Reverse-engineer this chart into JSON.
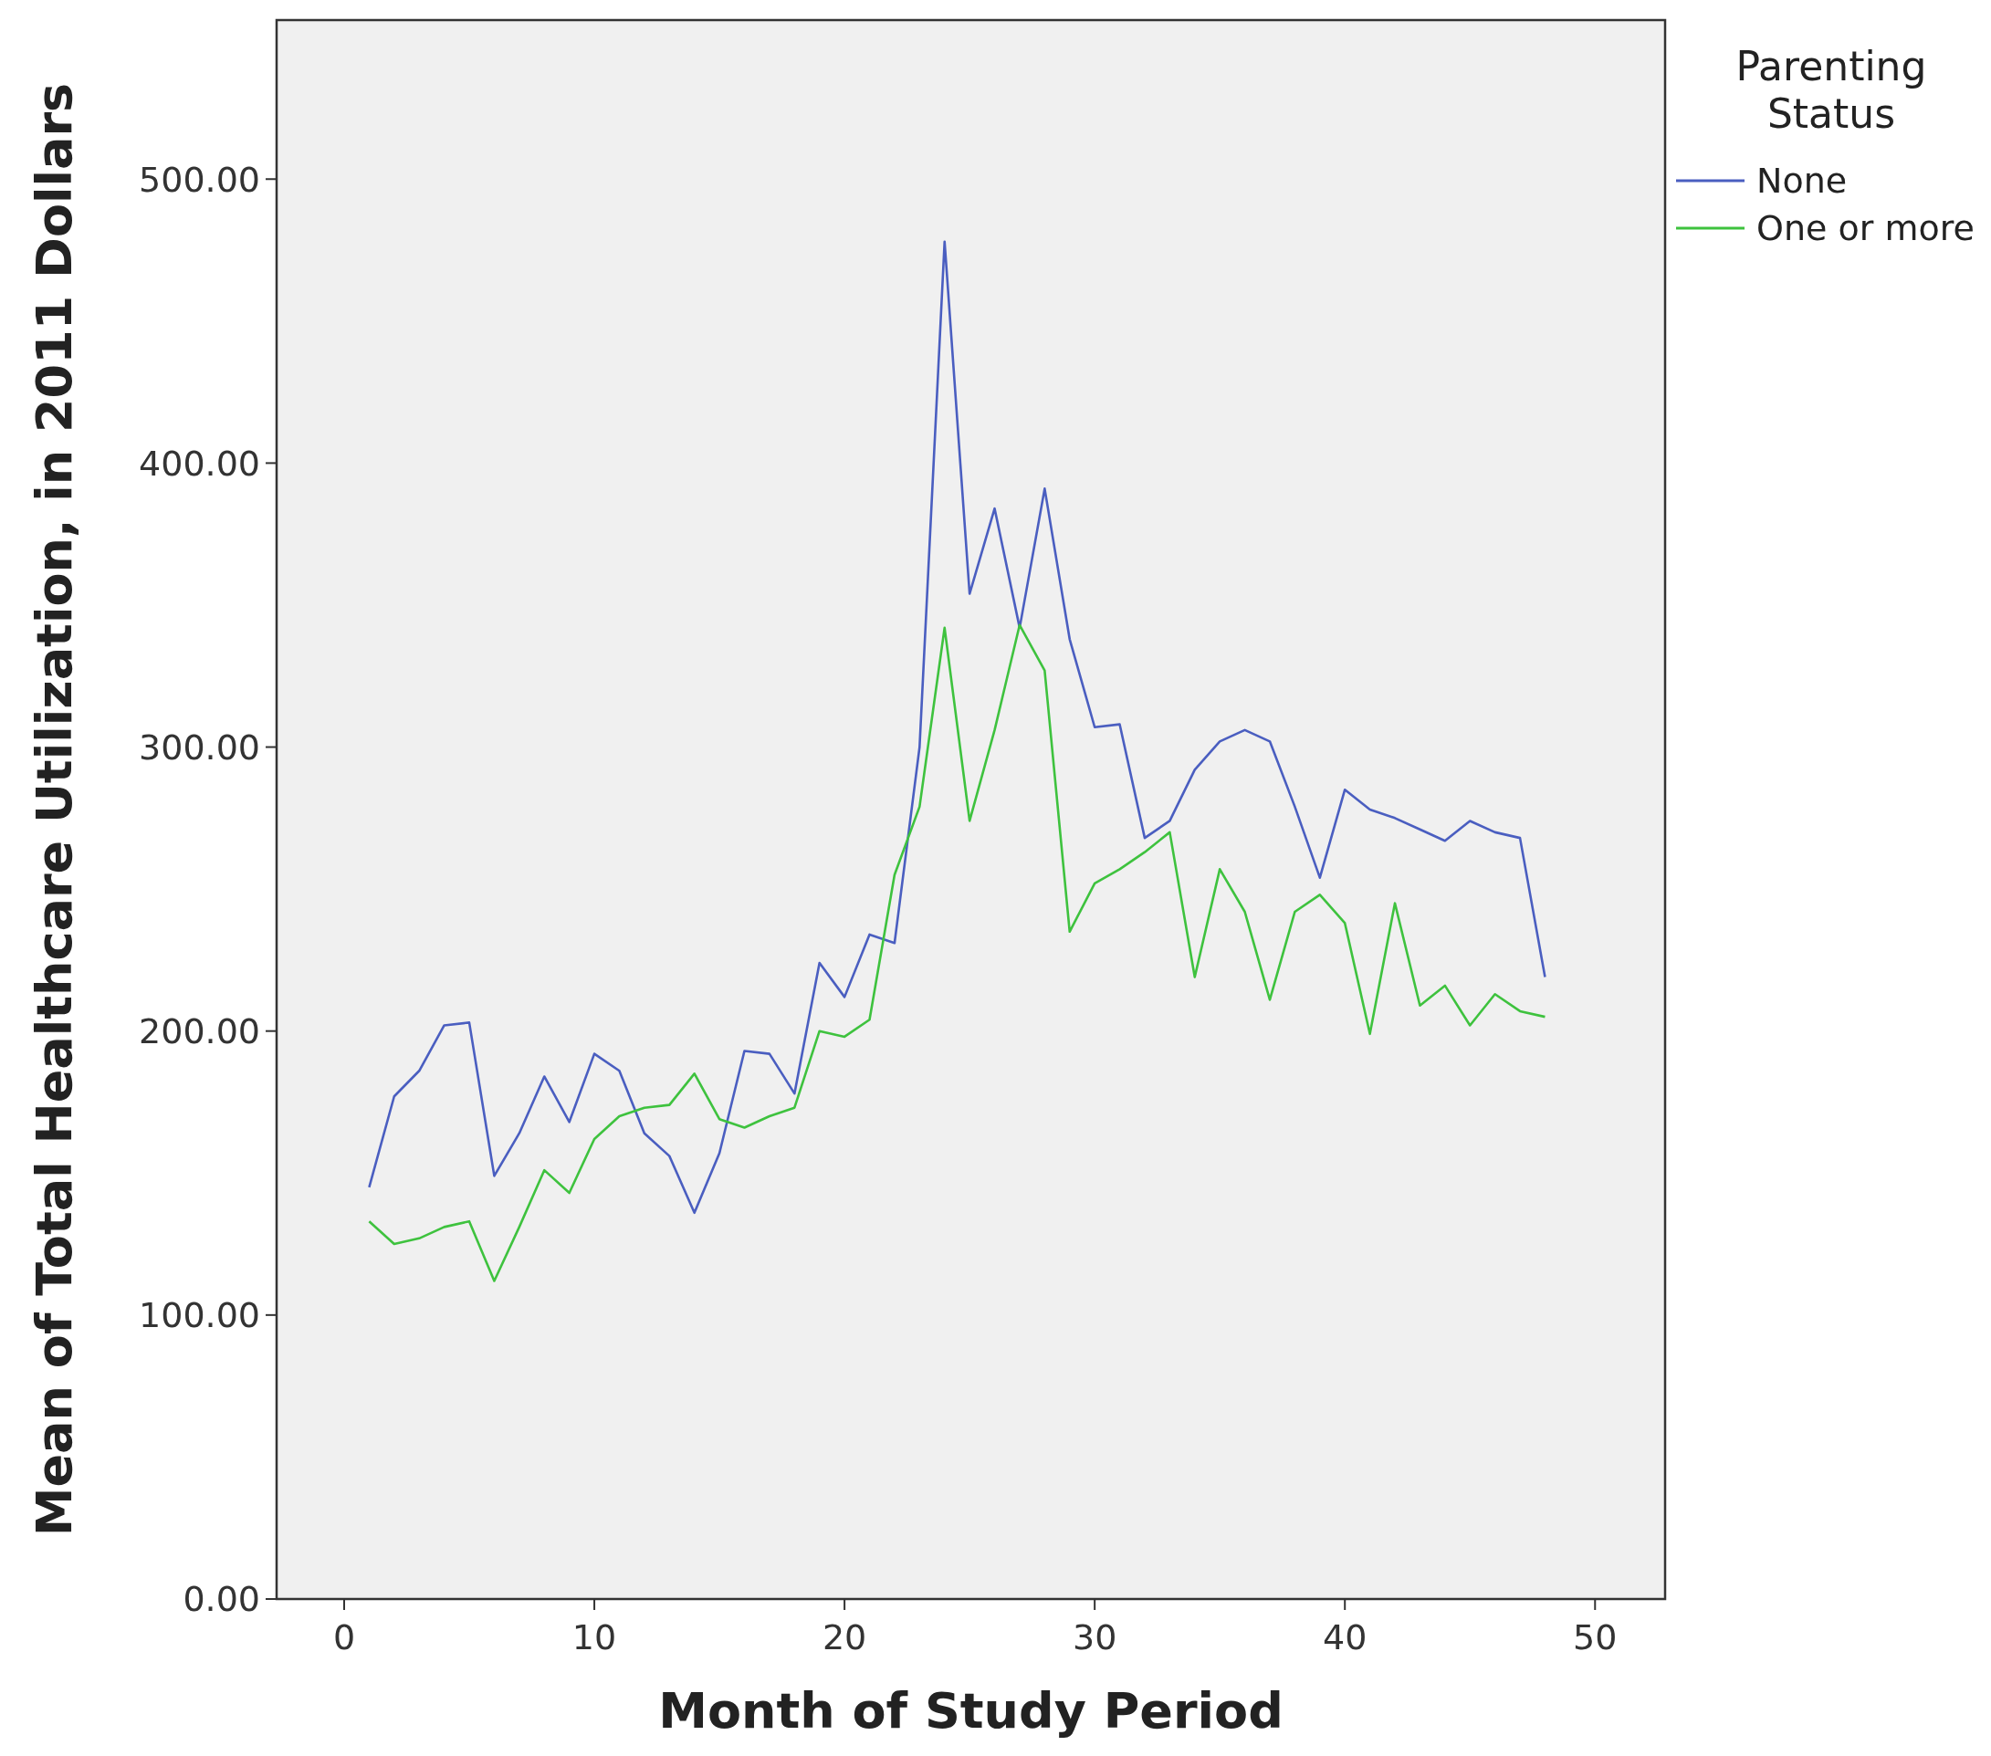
{
  "chart_data": {
    "type": "line",
    "xlabel": "Month of Study Period",
    "ylabel": "Mean of Total Healthcare Utilization, in 2011 Dollars",
    "legend_title": "Parenting Status",
    "legend": "top right",
    "grid": false,
    "marker": "none",
    "line_style": "solid",
    "x": [
      1,
      2,
      3,
      4,
      5,
      6,
      7,
      8,
      9,
      10,
      11,
      12,
      13,
      14,
      15,
      16,
      17,
      18,
      19,
      20,
      21,
      22,
      23,
      24,
      25,
      26,
      27,
      28,
      29,
      30,
      31,
      32,
      33,
      34,
      35,
      36,
      37,
      38,
      39,
      40,
      41,
      42,
      43,
      44,
      45,
      46,
      47,
      48
    ],
    "xlim": [
      -2.7,
      52.8
    ],
    "xticks": [
      0,
      10,
      20,
      30,
      40,
      50
    ],
    "ylim": [
      0,
      556
    ],
    "yticks": [
      {
        "value": 0,
        "label": "0.00"
      },
      {
        "value": 100,
        "label": "100.00"
      },
      {
        "value": 200,
        "label": "200.00"
      },
      {
        "value": 300,
        "label": "300.00"
      },
      {
        "value": 400,
        "label": "400.00"
      },
      {
        "value": 500,
        "label": "500.00"
      }
    ],
    "series": [
      {
        "name": "None",
        "color": "#4a5ec0",
        "values": [
          145,
          177,
          186,
          202,
          203,
          149,
          164,
          184,
          168,
          192,
          186,
          164,
          156,
          136,
          157,
          193,
          192,
          178,
          224,
          212,
          234,
          231,
          300,
          478,
          354,
          384,
          342,
          391,
          338,
          307,
          308,
          268,
          274,
          292,
          302,
          306,
          302,
          279,
          254,
          285,
          278,
          275,
          271,
          267,
          274,
          270,
          268,
          219
        ]
      },
      {
        "name": "One or more",
        "color": "#3ec23e",
        "values": [
          133,
          125,
          127,
          131,
          133,
          112,
          131,
          151,
          143,
          162,
          170,
          173,
          174,
          185,
          169,
          166,
          170,
          173,
          200,
          198,
          204,
          255,
          279,
          342,
          274,
          306,
          343,
          327,
          235,
          252,
          257,
          263,
          270,
          219,
          257,
          242,
          211,
          242,
          248,
          238,
          199,
          245,
          209,
          216,
          202,
          213,
          207,
          205
        ]
      }
    ]
  }
}
